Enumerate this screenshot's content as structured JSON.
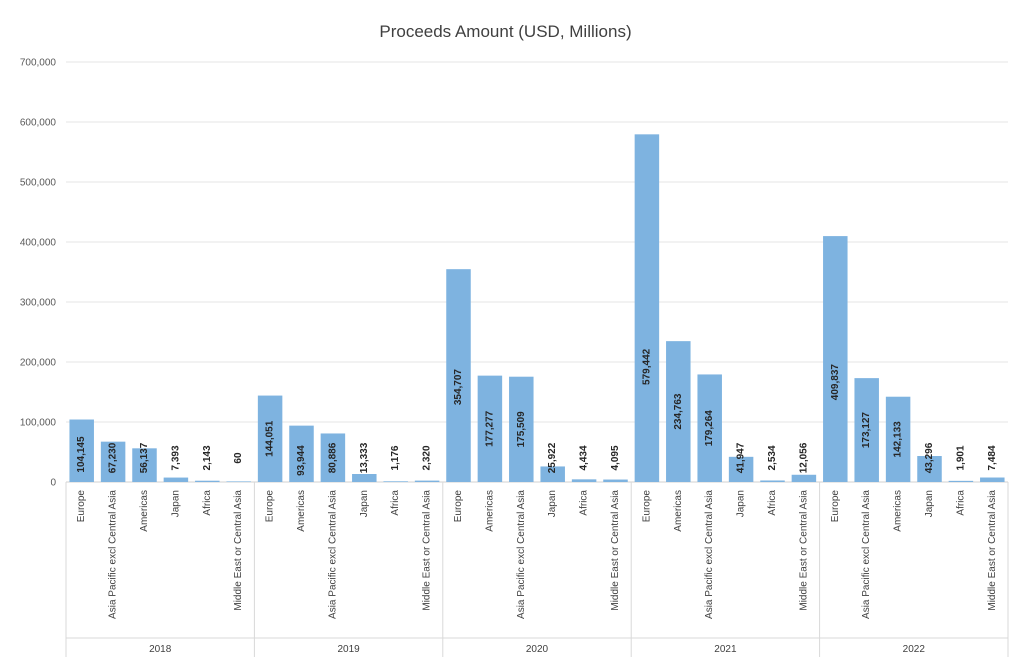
{
  "chart_data": {
    "type": "bar",
    "title": "Proceeds Amount (USD, Millions)",
    "xlabel": "",
    "ylabel": "",
    "ylim": [
      0,
      700000
    ],
    "yticks": [
      0,
      100000,
      200000,
      300000,
      400000,
      500000,
      600000,
      700000
    ],
    "ytick_labels": [
      "0",
      "100,000",
      "200,000",
      "300,000",
      "400,000",
      "500,000",
      "600,000",
      "700,000"
    ],
    "grid": true,
    "legend": "none",
    "bar_color": "#7EB3E0",
    "groups": [
      {
        "year": "2018",
        "bars": [
          {
            "category": "Europe",
            "value": 104145,
            "label": "104,145"
          },
          {
            "category": "Asia Pacific excl Central Asia",
            "value": 67230,
            "label": "67,230"
          },
          {
            "category": "Americas",
            "value": 56137,
            "label": "56,137"
          },
          {
            "category": "Japan",
            "value": 7393,
            "label": "7,393"
          },
          {
            "category": "Africa",
            "value": 2143,
            "label": "2,143"
          },
          {
            "category": "Middle East or Central Asia",
            "value": 60,
            "label": "60"
          }
        ]
      },
      {
        "year": "2019",
        "bars": [
          {
            "category": "Europe",
            "value": 144051,
            "label": "144,051"
          },
          {
            "category": "Americas",
            "value": 93944,
            "label": "93,944"
          },
          {
            "category": "Asia Pacific excl Central Asia",
            "value": 80886,
            "label": "80,886"
          },
          {
            "category": "Japan",
            "value": 13333,
            "label": "13,333"
          },
          {
            "category": "Africa",
            "value": 1176,
            "label": "1,176"
          },
          {
            "category": "Middle East or Central Asia",
            "value": 2320,
            "label": "2,320"
          }
        ]
      },
      {
        "year": "2020",
        "bars": [
          {
            "category": "Europe",
            "value": 354707,
            "label": "354,707"
          },
          {
            "category": "Americas",
            "value": 177277,
            "label": "177,277"
          },
          {
            "category": "Asia Pacific excl Central Asia",
            "value": 175509,
            "label": "175,509"
          },
          {
            "category": "Japan",
            "value": 25922,
            "label": "25,922"
          },
          {
            "category": "Africa",
            "value": 4434,
            "label": "4,434"
          },
          {
            "category": "Middle East or Central Asia",
            "value": 4095,
            "label": "4,095"
          }
        ]
      },
      {
        "year": "2021",
        "bars": [
          {
            "category": "Europe",
            "value": 579442,
            "label": "579,442"
          },
          {
            "category": "Americas",
            "value": 234763,
            "label": "234,763"
          },
          {
            "category": "Asia Pacific excl Central Asia",
            "value": 179264,
            "label": "179,264"
          },
          {
            "category": "Japan",
            "value": 41947,
            "label": "41,947"
          },
          {
            "category": "Africa",
            "value": 2534,
            "label": "2,534"
          },
          {
            "category": "Middle East or Central Asia",
            "value": 12056,
            "label": "12,056"
          }
        ]
      },
      {
        "year": "2022",
        "bars": [
          {
            "category": "Europe",
            "value": 409837,
            "label": "409,837"
          },
          {
            "category": "Asia Pacific excl Central Asia",
            "value": 173127,
            "label": "173,127"
          },
          {
            "category": "Americas",
            "value": 142133,
            "label": "142,133"
          },
          {
            "category": "Japan",
            "value": 43296,
            "label": "43,296"
          },
          {
            "category": "Africa",
            "value": 1901,
            "label": "1,901"
          },
          {
            "category": "Middle East or Central Asia",
            "value": 7484,
            "label": "7,484"
          }
        ]
      }
    ]
  }
}
